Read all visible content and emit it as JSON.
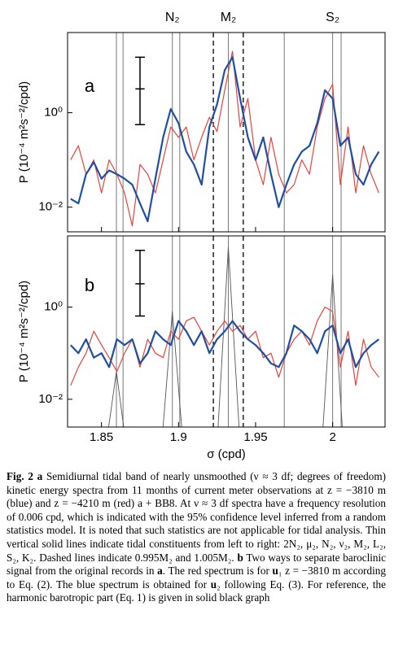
{
  "chart_data": [
    {
      "type": "line",
      "panel_label": "a",
      "log_y": true,
      "ylabel": "P (10⁻⁴ m²s⁻²/cpd)",
      "xlim": [
        1.828,
        2.034
      ],
      "ylim": [
        0.003,
        50
      ],
      "xticks": [
        1.85,
        1.9,
        1.95,
        2
      ],
      "yticks": [
        {
          "value": 0.01,
          "label": "10⁻²"
        },
        {
          "value": 1,
          "label": "10⁰"
        }
      ],
      "top_labels": [
        {
          "value": 1.896,
          "label": "N₂"
        },
        {
          "value": 1.9323,
          "label": "M₂"
        },
        {
          "value": 2.0,
          "label": "S₂"
        }
      ],
      "constituents": [
        1.8597,
        1.864,
        1.896,
        1.9008,
        1.9323,
        1.9686,
        2.0,
        2.0055
      ],
      "dashed": [
        1.9226,
        1.942
      ],
      "errorbar": {
        "x": 1.875,
        "value": 3.2,
        "lower": 0.56,
        "upper": 15,
        "xerr": 0.003
      },
      "x": [
        1.83,
        1.835,
        1.84,
        1.845,
        1.85,
        1.855,
        1.86,
        1.865,
        1.87,
        1.875,
        1.88,
        1.885,
        1.89,
        1.895,
        1.9,
        1.905,
        1.91,
        1.915,
        1.92,
        1.925,
        1.93,
        1.935,
        1.94,
        1.945,
        1.95,
        1.955,
        1.96,
        1.965,
        1.97,
        1.975,
        1.98,
        1.985,
        1.99,
        1.995,
        2.0,
        2.005,
        2.01,
        2.015,
        2.02,
        2.025,
        2.03
      ],
      "series": [
        {
          "color": "#e8433a",
          "width": 1.2,
          "values": [
            0.1,
            0.2,
            0.05,
            0.1,
            0.02,
            0.1,
            0.05,
            0.02,
            0.004,
            0.08,
            0.05,
            0.02,
            0.1,
            0.5,
            0.3,
            0.5,
            0.1,
            0.3,
            0.8,
            0.4,
            3,
            20,
            0.5,
            2,
            0.1,
            0.03,
            0.3,
            0.05,
            0.02,
            0.03,
            0.1,
            0.05,
            0.5,
            2,
            4,
            0.03,
            0.5,
            0.02,
            0.2,
            0.05,
            0.02
          ]
        },
        {
          "color": "#1f4fa3",
          "width": 2.2,
          "values": [
            0.015,
            0.012,
            0.05,
            0.09,
            0.04,
            0.06,
            0.05,
            0.04,
            0.03,
            0.012,
            0.005,
            0.04,
            0.3,
            1.2,
            0.6,
            0.15,
            0.08,
            0.03,
            0.5,
            1.5,
            8,
            15,
            2,
            0.3,
            0.1,
            0.3,
            0.05,
            0.01,
            0.03,
            0.08,
            0.15,
            0.2,
            0.6,
            3,
            2,
            0.2,
            0.3,
            0.05,
            0.03,
            0.08,
            0.15
          ]
        }
      ]
    },
    {
      "type": "line",
      "panel_label": "b",
      "log_y": true,
      "ylabel": "P (10⁻⁴ m²s⁻²/cpd)",
      "xlabel": "σ (cpd)",
      "xlim": [
        1.828,
        2.034
      ],
      "ylim": [
        0.0025,
        35
      ],
      "xticks": [
        1.85,
        1.9,
        1.95,
        2
      ],
      "yticks": [
        {
          "value": 0.01,
          "label": "10⁻²"
        },
        {
          "value": 1,
          "label": "10⁰"
        }
      ],
      "constituents": [
        1.8597,
        1.864,
        1.896,
        1.9008,
        1.9323,
        1.9686,
        2.0,
        2.0055
      ],
      "dashed": [
        1.9226,
        1.942
      ],
      "errorbar": {
        "x": 1.875,
        "value": 3.2,
        "lower": 0.64,
        "upper": 17,
        "xerr": 0.003
      },
      "x": [
        1.83,
        1.835,
        1.84,
        1.845,
        1.85,
        1.855,
        1.86,
        1.865,
        1.87,
        1.875,
        1.88,
        1.885,
        1.89,
        1.895,
        1.9,
        1.905,
        1.91,
        1.915,
        1.92,
        1.925,
        1.93,
        1.935,
        1.94,
        1.945,
        1.95,
        1.955,
        1.96,
        1.965,
        1.97,
        1.975,
        1.98,
        1.985,
        1.99,
        1.995,
        2.0,
        2.005,
        2.01,
        2.015,
        2.02,
        2.025,
        2.03
      ],
      "series": [
        {
          "color": "#555555",
          "width": 0.9,
          "x": [
            1.853,
            1.8597,
            1.866,
            1.889,
            1.896,
            1.903,
            1.925,
            1.9323,
            1.94,
            1.993,
            2.0,
            2.007
          ],
          "values": [
            0.001,
            0.04,
            0.001,
            0.001,
            0.8,
            0.001,
            0.001,
            20,
            0.001,
            0.001,
            5,
            0.001
          ]
        },
        {
          "color": "#e8433a",
          "width": 1.2,
          "values": [
            0.02,
            0.05,
            0.1,
            0.3,
            0.15,
            0.08,
            0.04,
            0.1,
            0.2,
            0.05,
            0.2,
            0.1,
            0.08,
            0.3,
            0.2,
            0.5,
            0.6,
            0.3,
            0.15,
            0.3,
            0.5,
            0.3,
            0.4,
            0.2,
            0.3,
            0.08,
            0.1,
            0.03,
            0.1,
            0.2,
            0.3,
            0.15,
            0.5,
            1,
            0.8,
            0.05,
            0.3,
            0.02,
            0.2,
            0.05,
            0.03
          ]
        },
        {
          "color": "#1f4fa3",
          "width": 2.2,
          "values": [
            0.15,
            0.1,
            0.2,
            0.08,
            0.1,
            0.05,
            0.2,
            0.15,
            0.2,
            0.06,
            0.1,
            0.3,
            0.2,
            0.15,
            0.5,
            0.3,
            0.15,
            0.3,
            0.1,
            0.2,
            0.3,
            0.5,
            0.3,
            0.2,
            0.15,
            0.1,
            0.06,
            0.05,
            0.1,
            0.4,
            0.3,
            0.2,
            0.1,
            0.3,
            0.4,
            0.1,
            0.2,
            0.05,
            0.1,
            0.15,
            0.2
          ]
        }
      ]
    }
  ],
  "caption": [
    "Fig. 2 a",
    " Semidiurnal tidal band of nearly unsmoothed (ν ≈ 3 df; degrees of freedom) kinetic energy spectra from 11 months of current meter observations at z = −3810 m (blue) and z = −4210 m (red) a + BB8. At ν ≈ 3 df spectra have a frequency resolution of 0.006 cpd, which is indicated with the 95% confidence level inferred from a random statistics model. It is noted that such statistics are not applicable for tidal analysis. Thin vertical solid lines indicate tidal constituents from left to right: 2N₂, μ₂, N₂, ν₂, M₂, L₂, S₂, K₂. Dashed lines indicate 0.995M₂ and 1.005M₂. ",
    "b",
    " Two ways to separate baroclinic signal from the original records in ",
    "a",
    ". The red spectrum is for ",
    "u",
    "₁ z = −3810 m according to Eq. (2). The blue spectrum is obtained for ",
    "u",
    "₂ following Eq. (3). For reference, the harmonic barotropic part (Eq. 1) is given in solid black graph"
  ]
}
